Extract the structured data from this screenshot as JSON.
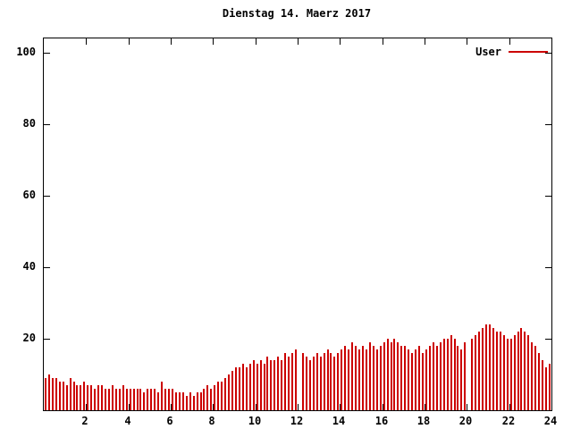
{
  "title": "Dienstag 14. Maerz 2017",
  "legend": {
    "label": "User",
    "color": "#cc0000"
  },
  "chart_data": {
    "type": "bar",
    "title": "Dienstag 14. Maerz 2017",
    "series_name": "User",
    "bar_color": "#cc0000",
    "x_start_hour": 0,
    "x_end_hour": 24,
    "interval_minutes": 10,
    "xticks": [
      2,
      4,
      6,
      8,
      10,
      12,
      14,
      16,
      18,
      20,
      22,
      24
    ],
    "yticks": [
      20,
      40,
      60,
      80,
      100
    ],
    "ylim": [
      0,
      104
    ],
    "xlim": [
      0,
      24
    ],
    "grid": false,
    "legend_position": "top-right",
    "values": [
      9,
      10,
      9,
      9,
      8,
      8,
      7,
      9,
      8,
      7,
      7,
      8,
      7,
      7,
      6,
      7,
      7,
      6,
      6,
      7,
      6,
      6,
      7,
      6,
      6,
      6,
      6,
      6,
      5,
      6,
      6,
      6,
      5,
      8,
      6,
      6,
      6,
      5,
      5,
      5,
      4,
      5,
      4,
      5,
      5,
      6,
      7,
      6,
      7,
      8,
      8,
      9,
      10,
      11,
      12,
      12,
      13,
      12,
      13,
      14,
      13,
      14,
      13,
      15,
      14,
      14,
      15,
      14,
      16,
      15,
      16,
      17,
      0,
      16,
      15,
      14,
      15,
      16,
      15,
      16,
      17,
      16,
      15,
      16,
      17,
      18,
      17,
      19,
      18,
      17,
      18,
      17,
      19,
      18,
      17,
      18,
      19,
      20,
      19,
      20,
      19,
      18,
      18,
      17,
      16,
      17,
      18,
      16,
      17,
      18,
      19,
      18,
      19,
      20,
      20,
      21,
      20,
      18,
      17,
      19,
      0,
      20,
      21,
      22,
      23,
      24,
      24,
      23,
      22,
      22,
      21,
      20,
      20,
      21,
      22,
      23,
      22,
      21,
      19,
      18,
      16,
      14,
      12,
      13
    ]
  }
}
